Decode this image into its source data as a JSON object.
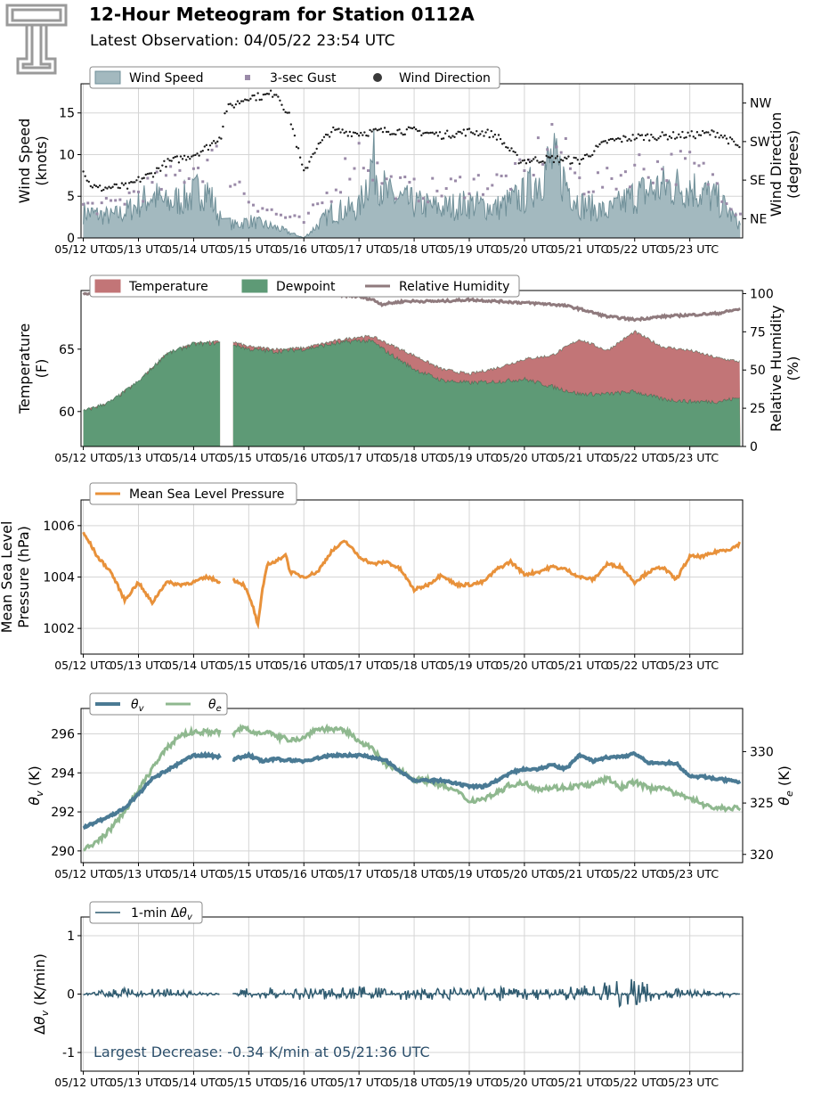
{
  "header": {
    "title": "12-Hour Meteogram for Station 0112A",
    "subtitle": "Latest Observation: 04/05/22 23:54 UTC"
  },
  "chart_data": [
    {
      "type": "area",
      "legend": [
        "Wind Speed",
        "3-sec Gust",
        "Wind Direction"
      ],
      "legend_placement": "top-left",
      "xlabel": "",
      "ylabel": "Wind Speed\n(knots)",
      "ylabel2": "Wind Direction\n(degrees)",
      "x_ticks": [
        "05/12 UTC",
        "05/13 UTC",
        "05/14 UTC",
        "05/15 UTC",
        "05/16 UTC",
        "05/17 UTC",
        "05/18 UTC",
        "05/19 UTC",
        "05/20 UTC",
        "05/21 UTC",
        "05/22 UTC",
        "05/23 UTC"
      ],
      "y_ticks": [
        0,
        5,
        10,
        15
      ],
      "y_ticks_right": [
        "NE",
        "SE",
        "SW",
        "NW"
      ],
      "ylim": [
        0,
        18.5
      ],
      "y2lim_deg": [
        0,
        360
      ],
      "grid": true,
      "colors": {
        "wind_speed": "#a3b9bf",
        "wind_speed_line": "#6f8f98",
        "gust": "#9a8aa8",
        "direction": "#1a1a1a"
      },
      "series": [
        {
          "name": "Wind Speed",
          "x_hours": [
            0,
            12,
            18,
            24,
            30,
            36,
            48,
            52,
            55,
            60,
            66,
            72,
            84,
            96,
            108,
            120,
            126,
            132,
            144,
            156,
            168,
            180,
            192,
            204,
            216,
            228,
            240,
            252,
            264,
            276,
            286
          ],
          "values": [
            3,
            2.5,
            3,
            4,
            5,
            4,
            5,
            6,
            5,
            2,
            1.5,
            2,
            1.2,
            0,
            3,
            3.5,
            9,
            5,
            4,
            3.5,
            4,
            3.5,
            5,
            9,
            4,
            3,
            5,
            6,
            6,
            4.5,
            1.5
          ]
        },
        {
          "name": "3-sec Gust",
          "x_hours": [
            0,
            12,
            24,
            36,
            48,
            60,
            72,
            84,
            96,
            108,
            120,
            132,
            144,
            156,
            168,
            180,
            192,
            204,
            216,
            228,
            240,
            252,
            264,
            276,
            286
          ],
          "values": [
            4,
            4,
            6,
            7,
            9,
            10,
            5,
            3,
            2,
            6,
            11,
            7,
            6,
            6,
            7,
            7,
            8,
            13,
            7,
            7,
            9,
            9,
            9,
            7,
            3
          ]
        },
        {
          "name": "Wind Direction",
          "x_hours": [
            0,
            2,
            6,
            12,
            20,
            24,
            30,
            36,
            42,
            48,
            52,
            56,
            60,
            62,
            72,
            78,
            84,
            90,
            96,
            100,
            108,
            120,
            132,
            144,
            156,
            168,
            176,
            180,
            190,
            204,
            216,
            228,
            240,
            252,
            264,
            276,
            280,
            286
          ],
          "values_deg": [
            162,
            130,
            115,
            118,
            120,
            135,
            150,
            175,
            185,
            195,
            205,
            220,
            240,
            300,
            330,
            330,
            340,
            280,
            150,
            200,
            250,
            245,
            250,
            250,
            240,
            248,
            245,
            238,
            180,
            185,
            180,
            225,
            235,
            238,
            240,
            245,
            232,
            210
          ]
        }
      ]
    },
    {
      "type": "area",
      "legend": [
        "Temperature",
        "Dewpoint",
        "Relative Humidity"
      ],
      "legend_placement": "top-left",
      "ylabel": "Temperature\n(F)",
      "ylabel2": "Relative Humidity\n(%)",
      "x_ticks": [
        "05/12 UTC",
        "05/13 UTC",
        "05/14 UTC",
        "05/15 UTC",
        "05/16 UTC",
        "05/17 UTC",
        "05/18 UTC",
        "05/19 UTC",
        "05/20 UTC",
        "05/21 UTC",
        "05/22 UTC",
        "05/23 UTC"
      ],
      "y_ticks": [
        60,
        65
      ],
      "y_ticks_right": [
        0,
        25,
        50,
        75,
        100
      ],
      "ylim": [
        57.2,
        69.7
      ],
      "y2lim": [
        0,
        102
      ],
      "grid": false,
      "colors": {
        "temperature": "#c27577",
        "dewpoint": "#5e9a76",
        "rh": "#8f7a7d"
      },
      "gap_hours": [
        60,
        65
      ],
      "series": [
        {
          "name": "Temperature",
          "x_hours": [
            0,
            12,
            24,
            36,
            48,
            60,
            65,
            72,
            84,
            96,
            108,
            120,
            126,
            132,
            144,
            156,
            168,
            180,
            192,
            204,
            216,
            228,
            240,
            252,
            264,
            276,
            286
          ],
          "values": [
            60,
            60.8,
            62.4,
            64.6,
            65.5,
            65.6,
            65.6,
            65.2,
            65,
            65.1,
            65.6,
            66,
            66,
            65.5,
            64.5,
            63.4,
            63,
            63.5,
            64.2,
            64.5,
            65.8,
            64.9,
            66.4,
            65.2,
            64.9,
            64.3,
            64
          ]
        },
        {
          "name": "Dewpoint",
          "x_hours": [
            0,
            12,
            24,
            36,
            48,
            60,
            65,
            72,
            84,
            96,
            108,
            120,
            126,
            132,
            144,
            156,
            168,
            180,
            192,
            204,
            216,
            228,
            240,
            252,
            264,
            276,
            286
          ],
          "values": [
            60,
            60.8,
            62.4,
            64.6,
            65.4,
            65.5,
            65.4,
            65,
            64.8,
            65,
            65.4,
            65.7,
            65.6,
            64.8,
            63.4,
            62.5,
            62.3,
            62.4,
            62.6,
            62,
            61.4,
            61.4,
            61.6,
            61,
            60.8,
            60.8,
            61.1
          ]
        },
        {
          "name": "Relative Humidity",
          "x_hours": [
            0,
            12,
            24,
            36,
            48,
            60,
            72,
            84,
            96,
            108,
            120,
            126,
            130,
            140,
            156,
            168,
            180,
            192,
            204,
            210,
            216,
            228,
            240,
            252,
            264,
            276,
            286
          ],
          "values": [
            100,
            100,
            100,
            100,
            100,
            100,
            100,
            100,
            100,
            99.5,
            98,
            96,
            93,
            95,
            95,
            96,
            95,
            94,
            93,
            92,
            90,
            85,
            83,
            85,
            86,
            87,
            90
          ]
        }
      ]
    },
    {
      "type": "line",
      "legend": [
        "Mean Sea Level Pressure"
      ],
      "legend_placement": "top-left",
      "ylabel": "Mean Sea Level\nPressure (hPa)",
      "x_ticks": [
        "05/12 UTC",
        "05/13 UTC",
        "05/14 UTC",
        "05/15 UTC",
        "05/16 UTC",
        "05/17 UTC",
        "05/18 UTC",
        "05/19 UTC",
        "05/20 UTC",
        "05/21 UTC",
        "05/22 UTC",
        "05/23 UTC"
      ],
      "y_ticks": [
        1002,
        1004,
        1006
      ],
      "ylim": [
        1001,
        1007
      ],
      "grid": true,
      "colors": {
        "pressure": "#e8913a"
      },
      "gap_hours": [
        60,
        65
      ],
      "series": [
        {
          "name": "Mean Sea Level Pressure",
          "x_hours": [
            0,
            3,
            6,
            12,
            18,
            24,
            26,
            30,
            36,
            42,
            48,
            54,
            60,
            65,
            70,
            74,
            76,
            78,
            80,
            84,
            88,
            90,
            96,
            102,
            108,
            114,
            120,
            126,
            132,
            138,
            144,
            150,
            156,
            162,
            168,
            174,
            180,
            186,
            192,
            198,
            204,
            210,
            216,
            222,
            228,
            234,
            240,
            246,
            252,
            258,
            264,
            270,
            276,
            282,
            286
          ],
          "values": [
            1005.7,
            1005.3,
            1004.8,
            1004.2,
            1003.1,
            1003.8,
            1003.5,
            1003,
            1003.8,
            1003.7,
            1003.8,
            1004,
            1003.8,
            1003.9,
            1003.7,
            1002.8,
            1002.1,
            1003.5,
            1004.5,
            1004.6,
            1004.9,
            1004.2,
            1004,
            1004.2,
            1005,
            1005.4,
            1004.8,
            1004.5,
            1004.6,
            1004.3,
            1003.5,
            1003.7,
            1004.1,
            1003.7,
            1003.7,
            1003.8,
            1004.3,
            1004.6,
            1004.1,
            1004.2,
            1004.4,
            1004.3,
            1004,
            1003.9,
            1004.5,
            1004.4,
            1003.8,
            1004.2,
            1004.4,
            1003.9,
            1004.8,
            1004.8,
            1005,
            1005.1,
            1005.3
          ]
        }
      ]
    },
    {
      "type": "line",
      "legend": [
        "θv",
        "θe"
      ],
      "legend_placement": "top-left",
      "ylabel": "θv (K)",
      "ylabel2": "θe (K)",
      "x_ticks": [
        "05/12 UTC",
        "05/13 UTC",
        "05/14 UTC",
        "05/15 UTC",
        "05/16 UTC",
        "05/17 UTC",
        "05/18 UTC",
        "05/19 UTC",
        "05/20 UTC",
        "05/21 UTC",
        "05/22 UTC",
        "05/23 UTC"
      ],
      "y_ticks": [
        290,
        292,
        294,
        296
      ],
      "y_ticks_right": [
        320,
        325,
        330
      ],
      "ylim": [
        289.4,
        297.3
      ],
      "y2lim": [
        319.2,
        334.2
      ],
      "grid": true,
      "colors": {
        "theta_v": "#4a7a94",
        "theta_e": "#8fb88f"
      },
      "gap_hours": [
        60,
        65
      ],
      "series": [
        {
          "name": "θv",
          "x_hours": [
            0,
            6,
            12,
            18,
            24,
            30,
            36,
            42,
            48,
            54,
            60,
            65,
            72,
            78,
            84,
            96,
            108,
            120,
            126,
            132,
            138,
            144,
            150,
            156,
            168,
            174,
            180,
            186,
            192,
            198,
            204,
            210,
            216,
            222,
            228,
            234,
            240,
            246,
            252,
            258,
            264,
            270,
            276,
            286
          ],
          "values": [
            291.2,
            291.5,
            291.8,
            292.2,
            292.9,
            293.7,
            294.1,
            294.5,
            294.9,
            294.9,
            294.8,
            294.7,
            294.9,
            294.6,
            294.7,
            294.6,
            294.9,
            294.9,
            294.8,
            294.6,
            294.1,
            293.6,
            293.6,
            293.6,
            293.3,
            293.3,
            293.6,
            294,
            294.2,
            294.2,
            294.4,
            294.2,
            294.9,
            294.6,
            294.8,
            294.8,
            295,
            294.5,
            294.5,
            294.5,
            293.8,
            293.8,
            293.7,
            293.5
          ]
        },
        {
          "name": "θe",
          "x_hours": [
            0,
            6,
            12,
            18,
            24,
            30,
            36,
            42,
            48,
            54,
            60,
            65,
            70,
            74,
            80,
            84,
            90,
            96,
            100,
            104,
            108,
            114,
            120,
            126,
            132,
            138,
            144,
            150,
            156,
            162,
            168,
            174,
            180,
            186,
            192,
            198,
            204,
            210,
            216,
            222,
            228,
            234,
            240,
            246,
            252,
            258,
            264,
            270,
            276,
            286
          ],
          "values": [
            320.4,
            321.2,
            322.5,
            324.2,
            326.2,
            328.4,
            330.2,
            331.6,
            331.9,
            331.9,
            331.9,
            331.7,
            332.4,
            331.8,
            332,
            331.4,
            331.2,
            331.3,
            332.1,
            332.2,
            332.2,
            332,
            331.1,
            330.2,
            328.6,
            328.2,
            327.3,
            327.2,
            326.7,
            326.2,
            325.2,
            325.4,
            326,
            326.8,
            326.9,
            326.4,
            326.5,
            326.5,
            326.7,
            326.8,
            327.4,
            326.5,
            327.1,
            326.4,
            326.6,
            325.8,
            325.6,
            324.8,
            324.5,
            324.5
          ]
        }
      ]
    },
    {
      "type": "line",
      "legend": [
        "1-min Δθv"
      ],
      "legend_placement": "top-left",
      "ylabel": "Δθv (K/min)",
      "x_ticks": [
        "05/12 UTC",
        "05/13 UTC",
        "05/14 UTC",
        "05/15 UTC",
        "05/16 UTC",
        "05/17 UTC",
        "05/18 UTC",
        "05/19 UTC",
        "05/20 UTC",
        "05/21 UTC",
        "05/22 UTC",
        "05/23 UTC"
      ],
      "y_ticks": [
        -1,
        0,
        1
      ],
      "ylim": [
        -1.32,
        1.32
      ],
      "grid": true,
      "colors": {
        "delta": "#2f5b70",
        "annotation": "#2c4f6b"
      },
      "gap_hours": [
        60,
        65
      ],
      "annotation": "Largest Decrease: -0.34 K/min at 05/21:36 UTC",
      "series": [
        {
          "name": "1-min Δθv",
          "x_hours": [
            0,
            12,
            24,
            36,
            48,
            60,
            65,
            72,
            84,
            96,
            108,
            120,
            132,
            144,
            156,
            168,
            180,
            192,
            204,
            216,
            222,
            228,
            234,
            240,
            252,
            264,
            276,
            286
          ],
          "values": [
            0,
            0.1,
            0.1,
            0.1,
            0.05,
            0,
            0,
            0.15,
            0.1,
            0.1,
            0.1,
            0.15,
            0.1,
            0.08,
            0.1,
            0.1,
            0.12,
            0.1,
            0.1,
            0.15,
            0.2,
            0.2,
            0.25,
            0.3,
            0.1,
            0.08,
            0.05,
            0
          ],
          "min_values": [
            0,
            -0.05,
            -0.05,
            -0.05,
            -0.05,
            0,
            0,
            -0.1,
            -0.1,
            -0.1,
            -0.1,
            -0.1,
            -0.1,
            -0.1,
            -0.1,
            -0.1,
            -0.12,
            -0.1,
            -0.1,
            -0.15,
            -0.2,
            -0.2,
            -0.34,
            -0.2,
            -0.08,
            -0.05,
            -0.05,
            -0.05
          ]
        }
      ]
    }
  ]
}
